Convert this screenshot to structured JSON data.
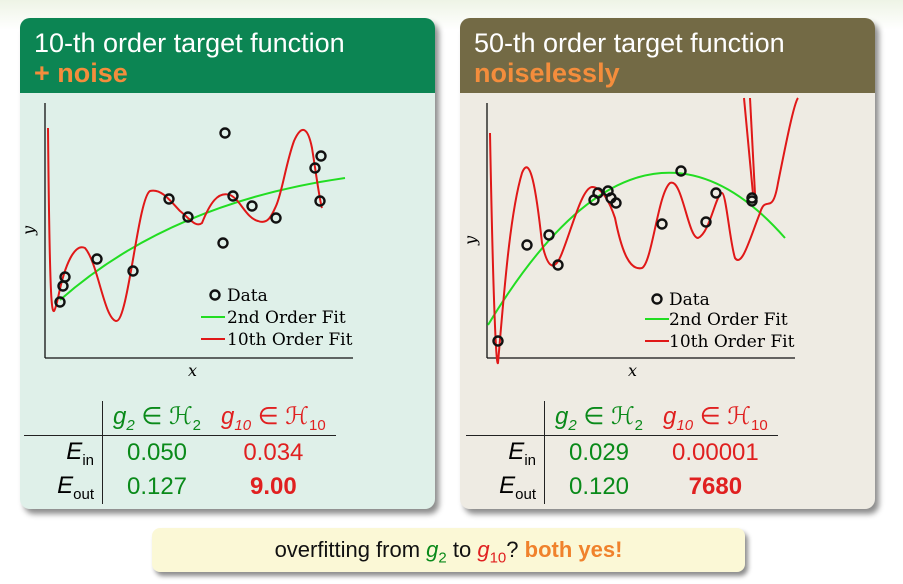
{
  "panels": [
    {
      "title_line1": "10-th order target function",
      "title_line2": "+ noise",
      "plot": {
        "ylabel": "y",
        "xlabel": "x",
        "legend": [
          "Data",
          "2nd Order Fit",
          "10th Order Fit"
        ]
      },
      "table": {
        "col1_g": "g",
        "col1_sub": "2",
        "col1_h": "∈ ℋ",
        "col1_hsub": "2",
        "col2_g": "g",
        "col2_sub": "10",
        "col2_h": "∈ ℋ",
        "col2_hsub": "10",
        "row1_label": "E",
        "row1_sub": "in",
        "row2_label": "E",
        "row2_sub": "out",
        "ein_g2": "0.050",
        "ein_g10": "0.034",
        "eout_g2": "0.127",
        "eout_g10": "9.00"
      }
    },
    {
      "title_line1": "50-th order target function",
      "title_line2": "noiselessly",
      "plot": {
        "ylabel": "y",
        "xlabel": "x",
        "legend": [
          "Data",
          "2nd Order Fit",
          "10th Order Fit"
        ]
      },
      "table": {
        "col1_g": "g",
        "col1_sub": "2",
        "col1_h": "∈ ℋ",
        "col1_hsub": "2",
        "col2_g": "g",
        "col2_sub": "10",
        "col2_h": "∈ ℋ",
        "col2_hsub": "10",
        "row1_label": "E",
        "row1_sub": "in",
        "row2_label": "E",
        "row2_sub": "out",
        "ein_g2": "0.029",
        "ein_g10": "0.00001",
        "eout_g2": "0.120",
        "eout_g10": "7680"
      }
    }
  ],
  "callout": {
    "prefix": "overfitting from ",
    "g2": "g",
    "g2_sub": "2",
    "to": " to ",
    "g10": "g",
    "g10_sub": "10",
    "q": "? ",
    "answer": "both yes!"
  },
  "colors": {
    "left_header": "#0c8553",
    "right_header": "#736a45",
    "accent_orange": "#f48d3c",
    "fit2": "#22dd22",
    "fit10": "#e01818"
  }
}
